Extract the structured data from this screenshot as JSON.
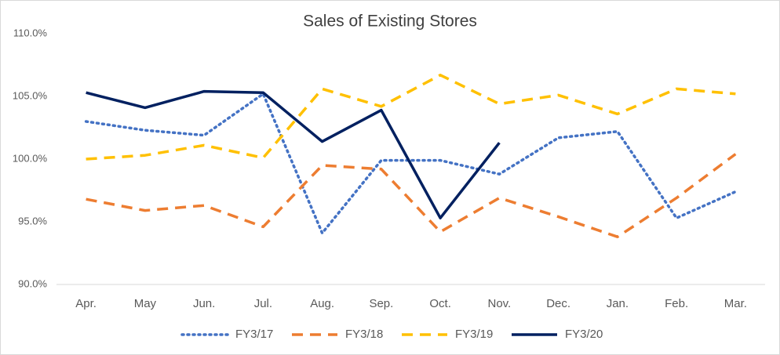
{
  "chart_data": {
    "type": "line",
    "title": "Sales of Existing Stores",
    "categories": [
      "Apr.",
      "May",
      "Jun.",
      "Jul.",
      "Aug.",
      "Sep.",
      "Oct.",
      "Nov.",
      "Dec.",
      "Jan.",
      "Feb.",
      "Mar."
    ],
    "series": [
      {
        "name": "FY3/17",
        "color": "#4472c4",
        "dash": "dotted",
        "values": [
          103.0,
          102.3,
          101.9,
          105.2,
          94.1,
          99.9,
          99.9,
          98.8,
          101.7,
          102.2,
          95.3,
          97.4
        ]
      },
      {
        "name": "FY3/18",
        "color": "#ed7d31",
        "dash": "dashed",
        "values": [
          96.8,
          95.9,
          96.3,
          94.6,
          99.5,
          99.2,
          94.2,
          96.9,
          95.4,
          93.8,
          96.9,
          100.4
        ]
      },
      {
        "name": "FY3/19",
        "color": "#ffc000",
        "dash": "dashed",
        "values": [
          100.0,
          100.3,
          101.1,
          100.1,
          105.6,
          104.2,
          106.7,
          104.4,
          105.1,
          103.6,
          105.6,
          105.2
        ]
      },
      {
        "name": "FY3/20",
        "color": "#002060",
        "dash": "solid",
        "values": [
          105.3,
          104.1,
          105.4,
          105.3,
          101.4,
          103.9,
          95.3,
          101.3,
          null,
          null,
          null,
          null
        ]
      }
    ],
    "ylim": [
      90,
      110
    ],
    "yticks": [
      {
        "value": 90,
        "label": "90.0%"
      },
      {
        "value": 95,
        "label": "95.0%"
      },
      {
        "value": 100,
        "label": "100.0%"
      },
      {
        "value": 105,
        "label": "105.0%"
      },
      {
        "value": 110,
        "label": "110.0%"
      }
    ],
    "grid": false,
    "legend": "bottom"
  }
}
